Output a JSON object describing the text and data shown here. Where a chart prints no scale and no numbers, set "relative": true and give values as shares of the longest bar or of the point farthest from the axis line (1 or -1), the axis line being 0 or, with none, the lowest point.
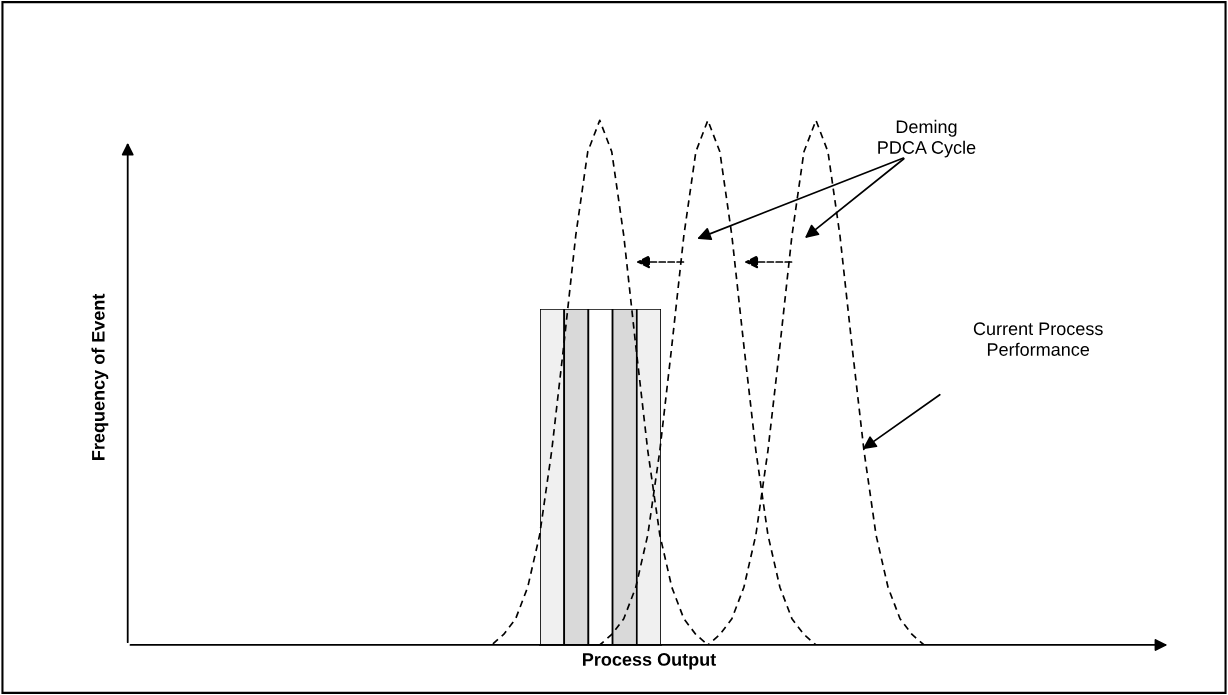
{
  "chart_data": [
    {
      "type": "line",
      "relative": true,
      "xlabel": "Process Output",
      "ylabel": "Frequency of Event",
      "categories": [
        null,
        null,
        null,
        null,
        null,
        null,
        null,
        null,
        null,
        null,
        null,
        null,
        null,
        null,
        null,
        null,
        null,
        null,
        null,
        null,
        null,
        null,
        null,
        null,
        null,
        null,
        null,
        null,
        null,
        null,
        null,
        null,
        null,
        null,
        null,
        null,
        null,
        null,
        null,
        null,
        null,
        null,
        null,
        null,
        null,
        null,
        null,
        null,
        null,
        null,
        null,
        null,
        null,
        null,
        null,
        null,
        null,
        null,
        null,
        null,
        null,
        null,
        null,
        null,
        null,
        null,
        null,
        null,
        null,
        null,
        null,
        null,
        null,
        null,
        null,
        null,
        null,
        null,
        null,
        null,
        null,
        null,
        null,
        null,
        null,
        null
      ],
      "line_style": "dashed",
      "marker": "none",
      "series": [
        {
          "color": "#000000",
          "values": [
            0,
            0,
            0,
            0,
            0,
            0,
            0,
            0,
            0,
            0,
            0,
            0,
            0,
            0,
            0,
            0,
            0,
            0,
            0,
            0,
            0,
            0,
            0,
            0,
            0,
            0,
            0,
            0,
            0,
            0,
            0.02,
            0.05,
            0.11,
            0.21,
            0.37,
            0.57,
            0.78,
            0.94,
            1,
            0.94,
            0.78,
            0.57,
            0.37,
            0.21,
            0.11,
            0.05,
            0.02,
            0,
            0,
            0,
            0,
            0,
            0,
            0,
            0,
            0,
            0,
            0,
            0,
            0,
            0,
            0,
            0,
            0,
            0,
            0,
            0,
            0,
            0,
            0,
            0,
            0,
            0,
            0,
            0,
            0,
            0,
            0,
            0,
            0,
            0,
            0,
            0,
            0,
            0,
            0
          ]
        },
        {
          "color": "#000000",
          "values": [
            0,
            0,
            0,
            0,
            0,
            0,
            0,
            0,
            0,
            0,
            0,
            0,
            0,
            0,
            0,
            0,
            0,
            0,
            0,
            0,
            0,
            0,
            0,
            0,
            0,
            0,
            0,
            0,
            0,
            0,
            0,
            0,
            0,
            0,
            0,
            0,
            0,
            0,
            0,
            0.02,
            0.05,
            0.11,
            0.21,
            0.37,
            0.57,
            0.78,
            0.94,
            1,
            0.94,
            0.78,
            0.57,
            0.37,
            0.21,
            0.11,
            0.05,
            0.02,
            0,
            0,
            0,
            0,
            0,
            0,
            0,
            0,
            0,
            0,
            0,
            0,
            0,
            0,
            0,
            0,
            0,
            0,
            0,
            0,
            0,
            0,
            0,
            0,
            0,
            0,
            0,
            0,
            0,
            0
          ]
        },
        {
          "color": "#000000",
          "values": [
            0,
            0,
            0,
            0,
            0,
            0,
            0,
            0,
            0,
            0,
            0,
            0,
            0,
            0,
            0,
            0,
            0,
            0,
            0,
            0,
            0,
            0,
            0,
            0,
            0,
            0,
            0,
            0,
            0,
            0,
            0,
            0,
            0,
            0,
            0,
            0,
            0,
            0,
            0,
            0,
            0,
            0,
            0,
            0,
            0,
            0,
            0,
            0,
            0.02,
            0.05,
            0.11,
            0.21,
            0.37,
            0.57,
            0.78,
            0.94,
            1,
            0.94,
            0.78,
            0.57,
            0.37,
            0.21,
            0.11,
            0.05,
            0.02,
            0,
            0,
            0,
            0,
            0,
            0,
            0,
            0,
            0,
            0,
            0,
            0,
            0,
            0,
            0,
            0,
            0,
            0,
            0,
            0,
            0
          ]
        }
      ],
      "annotations": [
        "Deming\nPDCA Cycle",
        "Current Process\nPerformance"
      ]
    },
    {
      "type": "bar",
      "relative": true,
      "categories": [
        null,
        null,
        null,
        null,
        null
      ],
      "values": [
        1,
        1,
        1,
        1,
        1
      ],
      "colors": [
        "#f0f0f0",
        "#d9d9d9",
        "#ffffff",
        "#d9d9d9",
        "#f0f0f0"
      ]
    }
  ]
}
